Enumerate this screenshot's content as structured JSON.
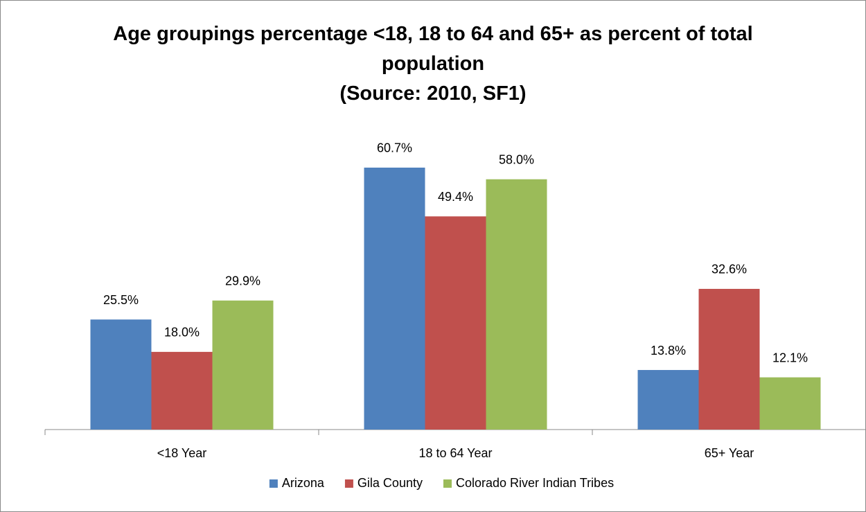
{
  "chart_data": {
    "type": "bar",
    "title": "Age groupings percentage <18, 18 to 64 and 65+ as percent of total population",
    "subtitle": "(Source: 2010, SF1)",
    "categories": [
      "<18 Year",
      "18 to 64 Year",
      "65+ Year"
    ],
    "series": [
      {
        "name": "Arizona",
        "color": "#4f81bd",
        "values": [
          25.5,
          60.7,
          13.8
        ],
        "value_labels": [
          "25.5%",
          "60.7%",
          "13.8%"
        ]
      },
      {
        "name": "Gila County",
        "color": "#c0504d",
        "values": [
          18.0,
          49.4,
          32.6
        ],
        "value_labels": [
          "18.0%",
          "49.4%",
          "32.6%"
        ]
      },
      {
        "name": "Colorado River Indian Tribes",
        "color": "#9bbb59",
        "values": [
          29.9,
          58.0,
          12.1
        ],
        "value_labels": [
          "29.9%",
          "58.0%",
          "12.1%"
        ]
      }
    ],
    "ylim": [
      0,
      70
    ],
    "legend": "bottom"
  }
}
